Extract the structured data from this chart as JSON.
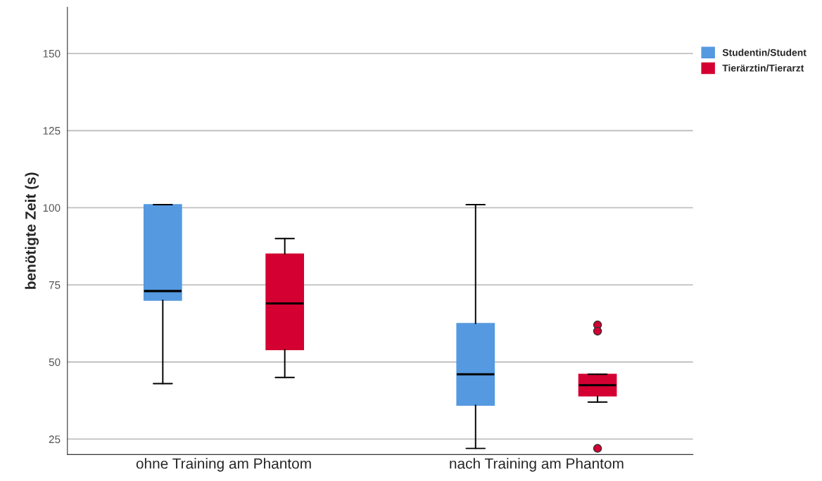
{
  "chart_data": {
    "type": "box",
    "ylabel": "benötigte Zeit (s)",
    "categories": [
      "ohne Training am Phantom",
      "nach Training am Phantom"
    ],
    "series": [
      {
        "name": "Studentin/Student",
        "color": "#5599e0",
        "boxes": [
          {
            "low": 43,
            "q1": 70,
            "median": 73,
            "q3": 101,
            "high": 101
          },
          {
            "low": 22,
            "q1": 36,
            "median": 46,
            "q3": 62.5,
            "high": 101
          }
        ]
      },
      {
        "name": "Tierärztin/Tierarzt",
        "color": "#d40032",
        "boxes": [
          {
            "low": 45,
            "q1": 54,
            "median": 69,
            "q3": 85,
            "high": 90
          },
          {
            "low": 37,
            "q1": 39,
            "median": 42.5,
            "q3": 46,
            "high": 46,
            "outliers": [
              62,
              60,
              22
            ]
          }
        ]
      }
    ],
    "ylim": [
      20,
      165
    ],
    "yticks": [
      25,
      50,
      75,
      100,
      125,
      150
    ],
    "grid": "y",
    "legend": "top right"
  }
}
